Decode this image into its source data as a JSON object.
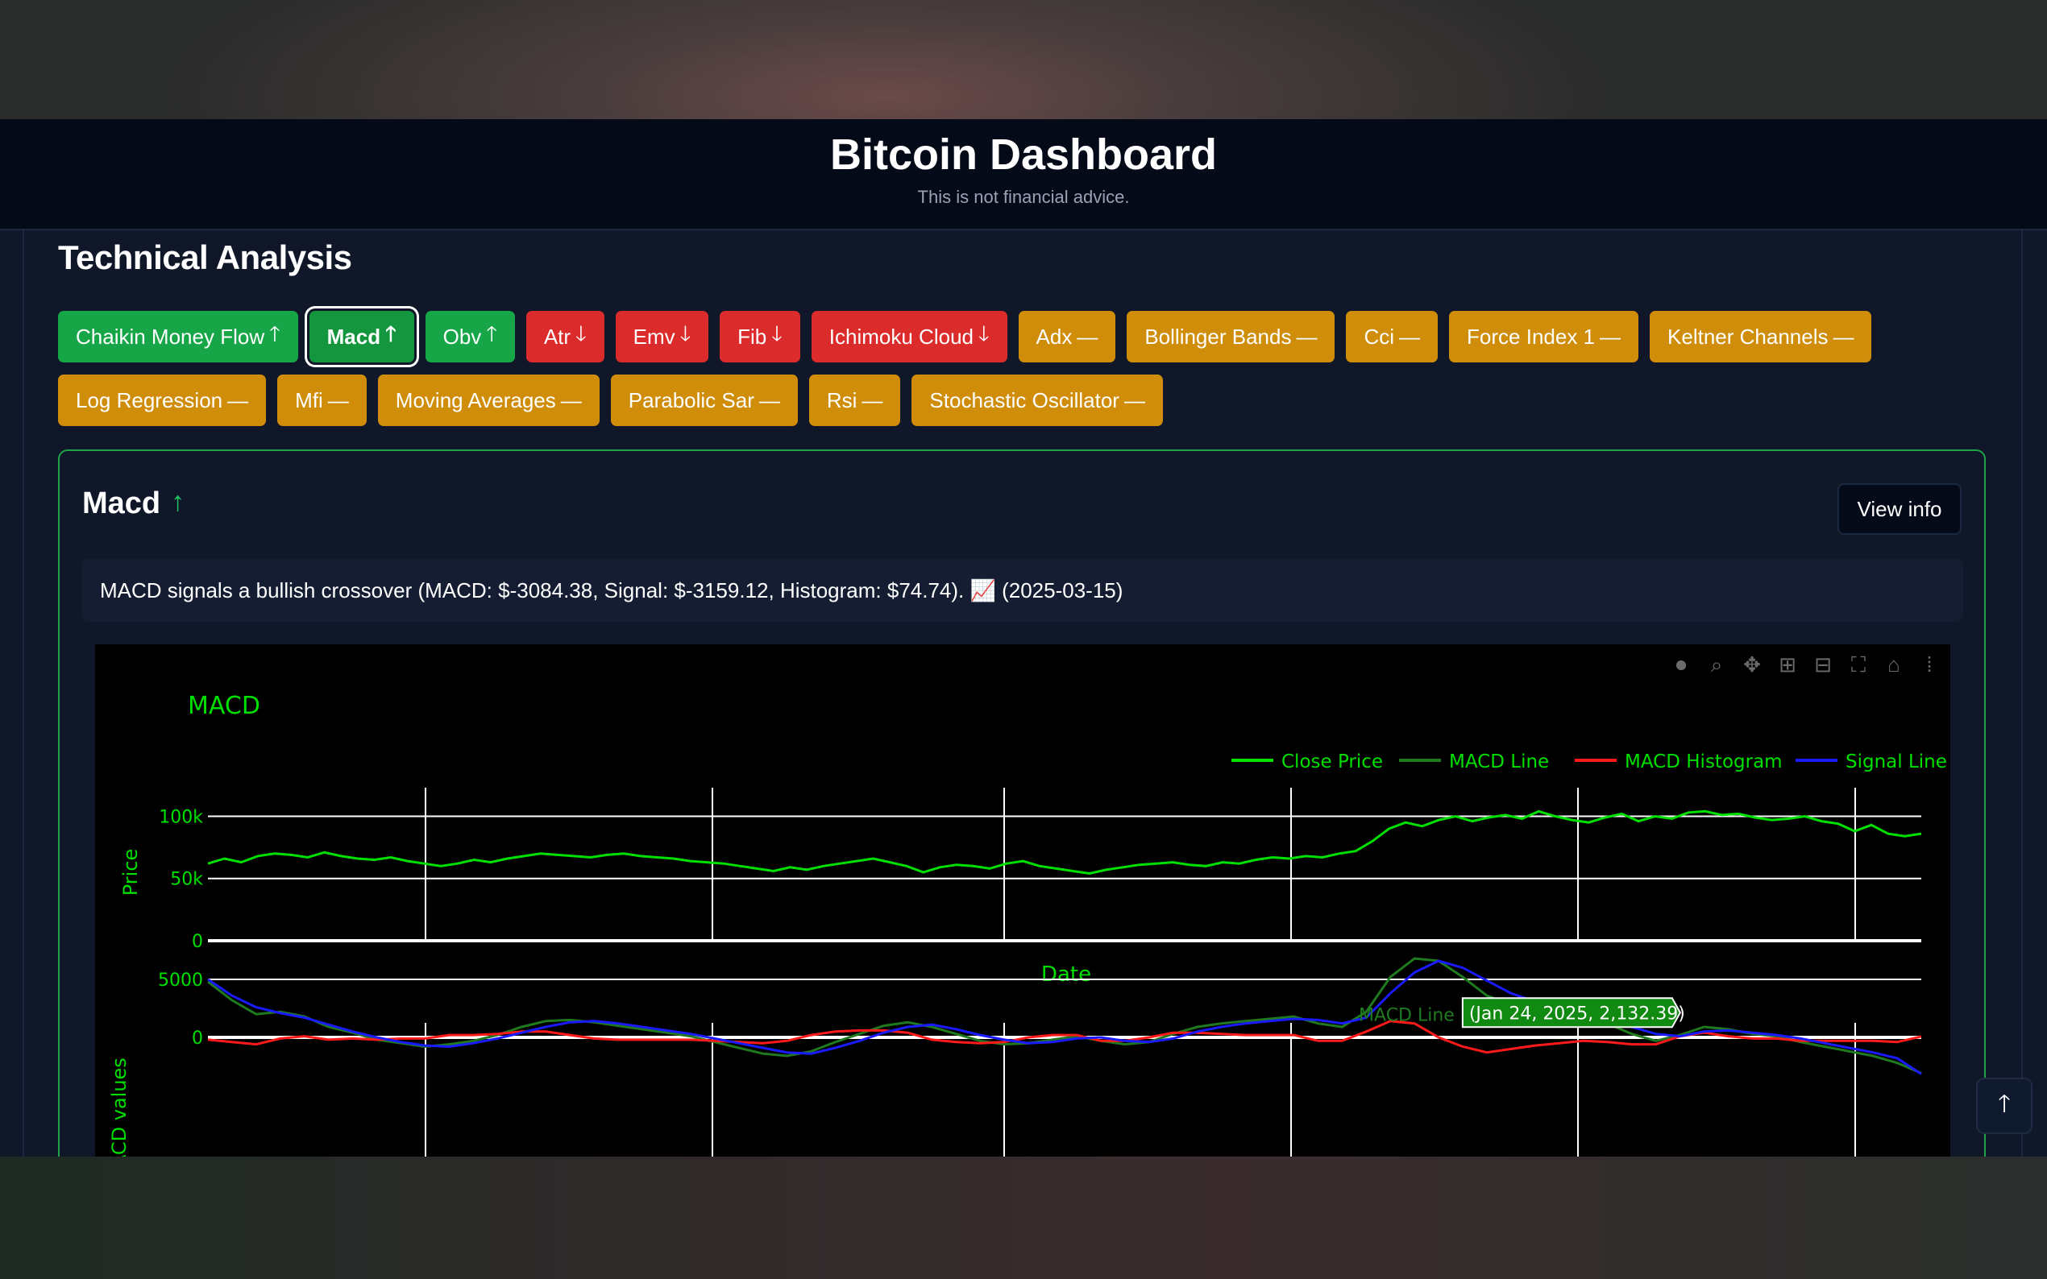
{
  "header": {
    "title": "Bitcoin Dashboard",
    "subtitle": "This is not financial advice."
  },
  "section": {
    "title": "Technical Analysis"
  },
  "indicators": [
    {
      "label": "Chaikin Money Flow",
      "trend": "up",
      "color": "#17a647"
    },
    {
      "label": "Macd",
      "trend": "up",
      "color": "#14963f",
      "active": true
    },
    {
      "label": "Obv",
      "trend": "up",
      "color": "#17a647"
    },
    {
      "label": "Atr",
      "trend": "down",
      "color": "#dc2b2b"
    },
    {
      "label": "Emv",
      "trend": "down",
      "color": "#dc2b2b"
    },
    {
      "label": "Fib",
      "trend": "down",
      "color": "#dc2b2b"
    },
    {
      "label": "Ichimoku Cloud",
      "trend": "down",
      "color": "#dc2b2b"
    },
    {
      "label": "Adx",
      "trend": "neutral",
      "color": "#cf8d0a"
    },
    {
      "label": "Bollinger Bands",
      "trend": "neutral",
      "color": "#cf8d0a"
    },
    {
      "label": "Cci",
      "trend": "neutral",
      "color": "#cf8d0a"
    },
    {
      "label": "Force Index 1",
      "trend": "neutral",
      "color": "#cf8d0a"
    },
    {
      "label": "Keltner Channels",
      "trend": "neutral",
      "color": "#cf8d0a"
    },
    {
      "label": "Log Regression",
      "trend": "neutral",
      "color": "#cf8d0a"
    },
    {
      "label": "Mfi",
      "trend": "neutral",
      "color": "#cf8d0a"
    },
    {
      "label": "Moving Averages",
      "trend": "neutral",
      "color": "#cf8d0a"
    },
    {
      "label": "Parabolic Sar",
      "trend": "neutral",
      "color": "#cf8d0a"
    },
    {
      "label": "Rsi",
      "trend": "neutral",
      "color": "#cf8d0a"
    },
    {
      "label": "Stochastic Oscillator",
      "trend": "neutral",
      "color": "#cf8d0a"
    }
  ],
  "trend_glyphs": {
    "up": "🡑",
    "down": "🡓",
    "neutral": "—"
  },
  "card": {
    "title": "Macd",
    "trend_icon": "arrow-up-icon",
    "view_info_label": "View info",
    "summary": "MACD signals a bullish crossover (MACD: $-3084.38, Signal: $-3159.12, Histogram: $74.74). 📈 (2025-03-15)"
  },
  "modebar": {
    "icons": [
      "camera-icon",
      "zoom-icon",
      "pan-icon",
      "zoom-in-icon",
      "zoom-out-icon",
      "autoscale-icon",
      "reset-axes-icon",
      "plotly-logo-icon"
    ]
  },
  "scroll_top": {
    "icon": "arrow-up-icon"
  },
  "chart_data": {
    "type": "line",
    "title": "MACD",
    "legend_placement": "top-right",
    "legend": [
      "Close Price",
      "MACD Line",
      "MACD Histogram",
      "Signal Line"
    ],
    "colors": {
      "Close Price": "#00e000",
      "MACD Line": "#1f7a1f",
      "MACD Histogram": "#ff1a1a",
      "Signal Line": "#1a1aff",
      "text": "#00e000",
      "grid": "#ffffff"
    },
    "grid": true,
    "x_index_range": [
      0,
      1
    ],
    "price_panel": {
      "ylabel": "Price",
      "xlabel": "Date",
      "ylim": [
        0,
        110000
      ],
      "yticks": [
        {
          "value": 0,
          "label": "0"
        },
        {
          "value": 50000,
          "label": "50k"
        },
        {
          "value": 100000,
          "label": "100k"
        }
      ],
      "series": [
        {
          "name": "Close Price",
          "values": [
            62000,
            66000,
            63000,
            68000,
            70000,
            69000,
            67000,
            71000,
            68000,
            66000,
            65000,
            67000,
            64000,
            62000,
            60000,
            62000,
            65000,
            63000,
            66000,
            68000,
            70000,
            69000,
            68000,
            67000,
            69000,
            70000,
            68000,
            67000,
            66000,
            64000,
            63000,
            62000,
            60000,
            58000,
            56000,
            59000,
            57000,
            60000,
            62000,
            64000,
            66000,
            63000,
            60000,
            55000,
            59000,
            61000,
            60000,
            58000,
            62000,
            64000,
            60000,
            58000,
            56000,
            54000,
            57000,
            59000,
            61000,
            62000,
            63000,
            61000,
            60000,
            63000,
            62000,
            65000,
            67000,
            66000,
            68000,
            67000,
            70000,
            72000,
            80000,
            90000,
            95000,
            92000,
            97000,
            100000,
            96000,
            99000,
            101000,
            98000,
            104000,
            100000,
            97000,
            95000,
            99000,
            102000,
            96000,
            100000,
            98000,
            103000,
            104000,
            101000,
            102000,
            99000,
            97000,
            98000,
            100000,
            96000,
            94000,
            88000,
            93000,
            86000,
            84000,
            86000
          ]
        }
      ]
    },
    "macd_panel": {
      "ylabel": "MACD values",
      "yticks": [
        {
          "value": 0,
          "label": "0"
        },
        {
          "value": 5000,
          "label": "5000"
        }
      ],
      "ylim": [
        -2500,
        6000
      ],
      "series": [
        {
          "name": "MACD Line",
          "values": [
            4800,
            3200,
            2000,
            2200,
            1800,
            900,
            400,
            -200,
            -500,
            -800,
            -600,
            -300,
            200,
            900,
            1400,
            1500,
            1300,
            1000,
            700,
            400,
            100,
            -400,
            -900,
            -1400,
            -1600,
            -1200,
            -400,
            300,
            1000,
            1300,
            900,
            300,
            -300,
            -600,
            -500,
            -200,
            100,
            -300,
            -600,
            -400,
            300,
            900,
            1200,
            1400,
            1600,
            1800,
            1200,
            900,
            2200,
            5200,
            6800,
            6600,
            5200,
            3600,
            2800,
            2400,
            2132.39,
            1800,
            1200,
            300,
            -300,
            200,
            900,
            700,
            300,
            100,
            -400,
            -800,
            -1200,
            -1600,
            -2200,
            -3084.38
          ]
        },
        {
          "name": "Signal Line",
          "values": [
            5000,
            3600,
            2600,
            2100,
            1700,
            1100,
            500,
            0,
            -400,
            -700,
            -800,
            -500,
            -100,
            400,
            900,
            1300,
            1400,
            1200,
            900,
            600,
            300,
            -100,
            -500,
            -900,
            -1300,
            -1400,
            -900,
            -300,
            400,
            900,
            1100,
            700,
            200,
            -200,
            -500,
            -400,
            -100,
            0,
            -300,
            -400,
            -100,
            500,
            900,
            1200,
            1400,
            1600,
            1500,
            1200,
            1700,
            3800,
            5600,
            6600,
            6000,
            4900,
            3800,
            3100,
            2600,
            2100,
            1600,
            900,
            300,
            100,
            500,
            600,
            400,
            200,
            -100,
            -500,
            -900,
            -1300,
            -1800,
            -3159.12
          ]
        },
        {
          "name": "MACD Histogram",
          "values": [
            -200,
            -400,
            -600,
            -100,
            100,
            -200,
            -100,
            -200,
            -100,
            -100,
            200,
            200,
            300,
            500,
            500,
            200,
            -100,
            -200,
            -200,
            -200,
            -200,
            -300,
            -400,
            -500,
            -300,
            200,
            500,
            600,
            600,
            400,
            -200,
            -400,
            -500,
            -400,
            0,
            200,
            200,
            -300,
            -300,
            0,
            400,
            400,
            300,
            200,
            200,
            200,
            -300,
            -300,
            500,
            1400,
            1200,
            0,
            -800,
            -1300,
            -1000,
            -700,
            -500,
            -300,
            -400,
            -600,
            -600,
            100,
            400,
            100,
            -100,
            -100,
            -300,
            -300,
            -300,
            -300,
            -400,
            74.74
          ]
        }
      ]
    },
    "tooltip": {
      "series": "MACD Line",
      "text": "(Jan 24, 2025, 2,132.39)",
      "index": 56
    }
  }
}
